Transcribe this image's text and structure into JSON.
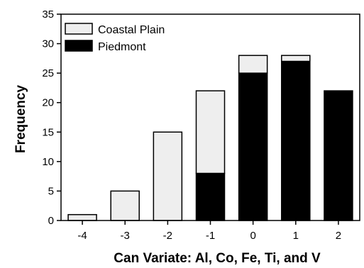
{
  "chart_data": {
    "type": "bar",
    "stacked": true,
    "categories": [
      "-4",
      "-3",
      "-2",
      "-1",
      "0",
      "1",
      "2"
    ],
    "series": [
      {
        "name": "Piedmont",
        "values": [
          0,
          0,
          0,
          8,
          25,
          27,
          22
        ],
        "color": "#000000"
      },
      {
        "name": "Coastal Plain",
        "values": [
          1,
          5,
          15,
          14,
          3,
          1,
          0
        ],
        "color": "#eeeeee"
      }
    ],
    "legend_order": [
      "Coastal Plain",
      "Piedmont"
    ],
    "legend_position": "top-left",
    "title": "",
    "xlabel": "Can Variate: Al, Co, Fe, Ti, and V",
    "ylabel": "Frequency",
    "ylim": [
      0,
      35
    ],
    "yticks": [
      "0",
      "5",
      "10",
      "15",
      "20",
      "25",
      "30",
      "35"
    ],
    "grid": false
  }
}
